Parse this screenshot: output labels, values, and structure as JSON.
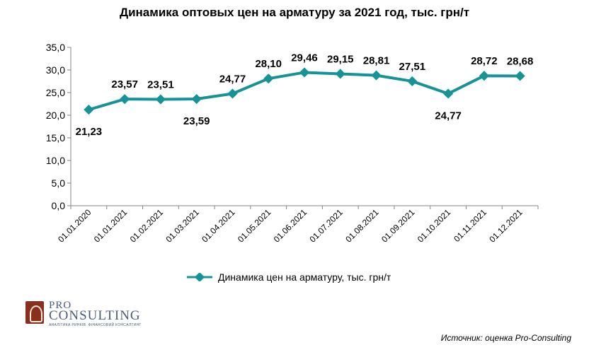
{
  "chart_data": {
    "type": "line",
    "title": "Динамика оптовых цен на арматуру за 2021 год, тыс. грн/т",
    "categories": [
      "01.01.2020",
      "01.01.2021",
      "01.02.2021",
      "01.03.2021",
      "01.04.2021",
      "01.05.2021",
      "01.06.2021",
      "01.07.2021",
      "01.08.2021",
      "01.09.2021",
      "01.10.2021",
      "01.11.2021",
      "01.12.2021"
    ],
    "series": [
      {
        "name": "Динамика  цен на арматуру,  тыс. грн/т",
        "values": [
          21.23,
          23.57,
          23.51,
          23.59,
          24.77,
          28.1,
          29.46,
          29.15,
          28.81,
          27.51,
          24.77,
          28.72,
          28.68
        ],
        "labels": [
          "21,23",
          "23,57",
          "23,51",
          "23,59",
          "24,77",
          "28,10",
          "29,46",
          "29,15",
          "28,81",
          "27,51",
          "24,77",
          "28,72",
          "28,68"
        ],
        "label_positions": [
          "below",
          "above",
          "above",
          "below",
          "above",
          "above",
          "above",
          "above",
          "above",
          "above",
          "below",
          "above",
          "above"
        ]
      }
    ],
    "ylim": [
      0,
      35
    ],
    "yticks": [
      "0,0",
      "5,0",
      "10,0",
      "15,0",
      "20,0",
      "25,0",
      "30,0",
      "35,0"
    ],
    "grid": false,
    "legend_position": "bottom",
    "colors": {
      "line": "#159397",
      "axis": "#868686"
    }
  },
  "logo": {
    "line1": "PRO",
    "line2": "CONSULTING",
    "tagline": "АНАЛІТИКА РИНКІВ. ФІНАНСОВИЙ КОНСАЛТИНГ"
  },
  "source": "Источник: оценка Pro-Consulting"
}
